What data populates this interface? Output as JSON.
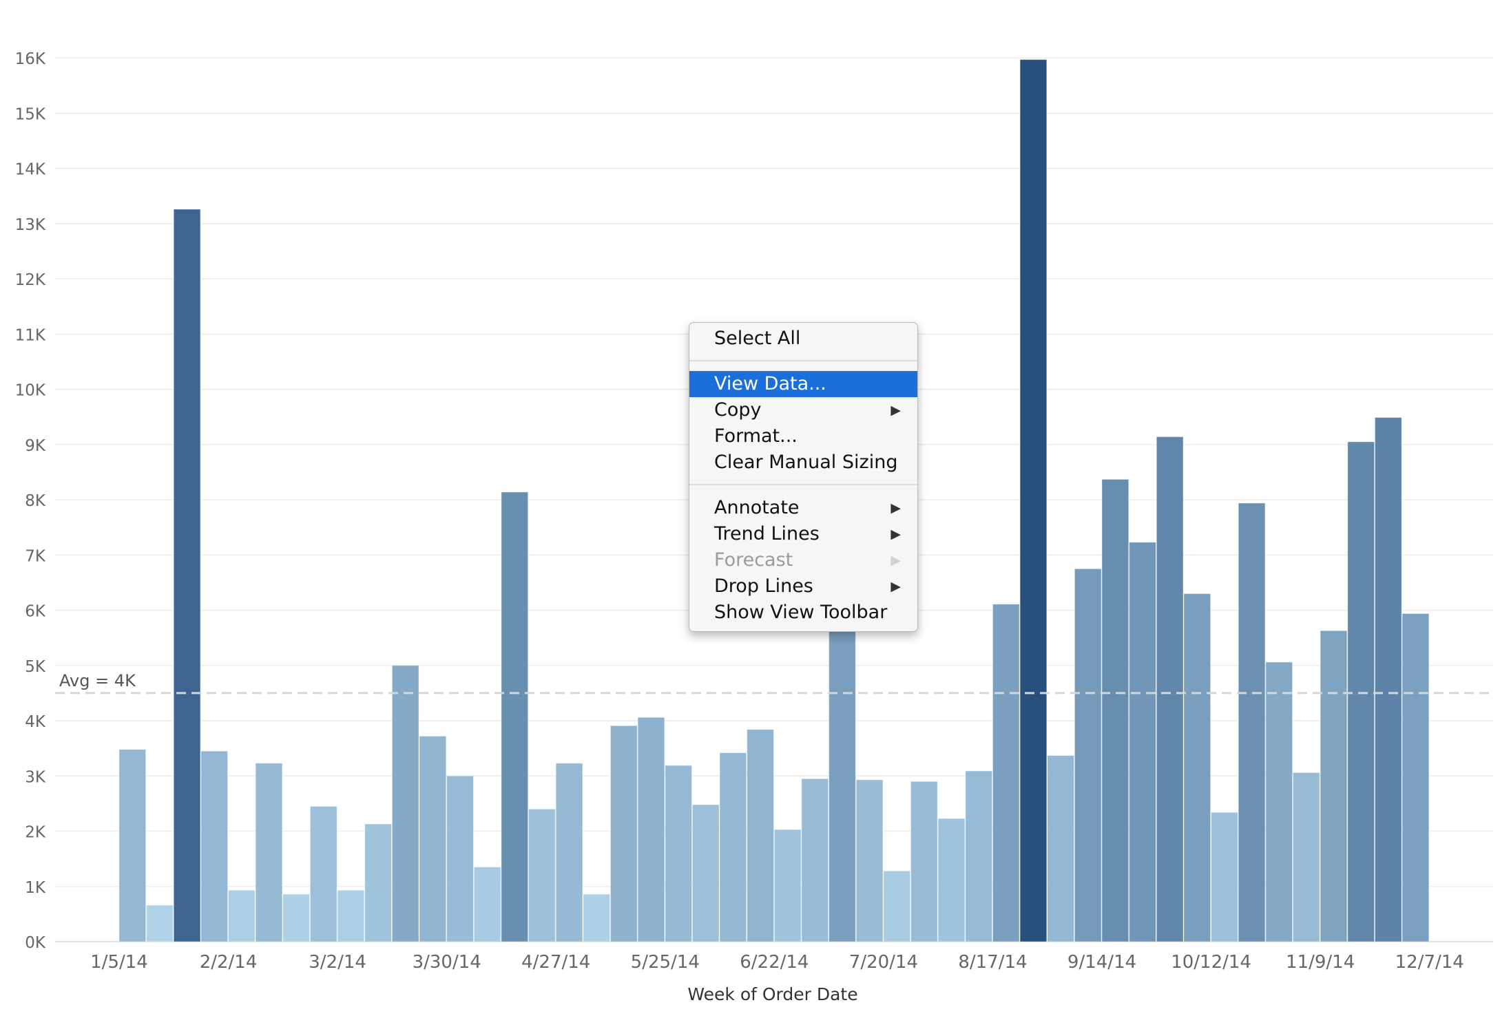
{
  "chart_data": {
    "type": "bar",
    "title": "",
    "xlabel": "Week of Order Date",
    "ylabel": "",
    "ylim": [
      0,
      16800
    ],
    "y_ticks": [
      0,
      1000,
      2000,
      3000,
      4000,
      5000,
      6000,
      7000,
      8000,
      9000,
      10000,
      11000,
      12000,
      13000,
      14000,
      15000,
      16000
    ],
    "y_tick_labels": [
      "0K",
      "1K",
      "2K",
      "3K",
      "4K",
      "5K",
      "6K",
      "7K",
      "8K",
      "9K",
      "10K",
      "11K",
      "12K",
      "13K",
      "14K",
      "15K",
      "16K"
    ],
    "x_tick_labels": [
      "1/5/14",
      "2/2/14",
      "3/2/14",
      "3/30/14",
      "4/27/14",
      "5/25/14",
      "6/22/14",
      "7/20/14",
      "8/17/14",
      "9/14/14",
      "10/12/14",
      "11/9/14",
      "12/7/14"
    ],
    "grid": true,
    "color_scale": [
      "#b8daef",
      "#27507d"
    ],
    "reference_line": {
      "label": "Avg = 4K",
      "value": 4500,
      "style": "dashed"
    },
    "bars": [
      {
        "week": "1/5/14",
        "value": 3480
      },
      {
        "week": "1/12/14",
        "value": 660
      },
      {
        "week": "1/19/14",
        "value": 13260
      },
      {
        "week": "1/26/14",
        "value": 3450
      },
      {
        "week": "2/2/14",
        "value": 930
      },
      {
        "week": "2/9/14",
        "value": 3230
      },
      {
        "week": "2/16/14",
        "value": 860
      },
      {
        "week": "2/23/14",
        "value": 2450
      },
      {
        "week": "3/2/14",
        "value": 930
      },
      {
        "week": "3/9/14",
        "value": 2130
      },
      {
        "week": "3/16/14",
        "value": 5000
      },
      {
        "week": "3/23/14",
        "value": 3720
      },
      {
        "week": "3/30/14",
        "value": 3000
      },
      {
        "week": "4/6/14",
        "value": 1350
      },
      {
        "week": "4/13/14",
        "value": 8140
      },
      {
        "week": "4/20/14",
        "value": 2400
      },
      {
        "week": "4/27/14",
        "value": 3230
      },
      {
        "week": "5/4/14",
        "value": 860
      },
      {
        "week": "5/11/14",
        "value": 3910
      },
      {
        "week": "5/18/14",
        "value": 4060
      },
      {
        "week": "5/25/14",
        "value": 3190
      },
      {
        "week": "6/1/14",
        "value": 2480
      },
      {
        "week": "6/8/14",
        "value": 3420
      },
      {
        "week": "6/15/14",
        "value": 3840
      },
      {
        "week": "6/22/14",
        "value": 2030
      },
      {
        "week": "6/29/14",
        "value": 2950
      },
      {
        "week": "7/6/14",
        "value": 6200
      },
      {
        "week": "7/13/14",
        "value": 2930
      },
      {
        "week": "7/20/14",
        "value": 1280
      },
      {
        "week": "7/27/14",
        "value": 2900
      },
      {
        "week": "8/3/14",
        "value": 2230
      },
      {
        "week": "8/10/14",
        "value": 3090
      },
      {
        "week": "8/17/14",
        "value": 6110
      },
      {
        "week": "8/24/14",
        "value": 15970
      },
      {
        "week": "8/31/14",
        "value": 3370
      },
      {
        "week": "9/7/14",
        "value": 6750
      },
      {
        "week": "9/14/14",
        "value": 8370
      },
      {
        "week": "9/21/14",
        "value": 7230
      },
      {
        "week": "9/28/14",
        "value": 9140
      },
      {
        "week": "10/5/14",
        "value": 6300
      },
      {
        "week": "10/12/14",
        "value": 2340
      },
      {
        "week": "10/19/14",
        "value": 7940
      },
      {
        "week": "10/26/14",
        "value": 5060
      },
      {
        "week": "11/2/14",
        "value": 3060
      },
      {
        "week": "11/9/14",
        "value": 5630
      },
      {
        "week": "11/16/14",
        "value": 9050
      },
      {
        "week": "11/23/14",
        "value": 9490
      },
      {
        "week": "11/30/14",
        "value": 5940
      }
    ]
  },
  "context_menu": {
    "items": [
      {
        "label": "Select All",
        "submenu": false,
        "disabled": false,
        "selected": false,
        "separator_after": true
      },
      {
        "label": "View Data...",
        "submenu": false,
        "disabled": false,
        "selected": true,
        "separator_after": false
      },
      {
        "label": "Copy",
        "submenu": true,
        "disabled": false,
        "selected": false,
        "separator_after": false
      },
      {
        "label": "Format...",
        "submenu": false,
        "disabled": false,
        "selected": false,
        "separator_after": false
      },
      {
        "label": "Clear Manual Sizing",
        "submenu": false,
        "disabled": false,
        "selected": false,
        "separator_after": true
      },
      {
        "label": "Annotate",
        "submenu": true,
        "disabled": false,
        "selected": false,
        "separator_after": false
      },
      {
        "label": "Trend Lines",
        "submenu": true,
        "disabled": false,
        "selected": false,
        "separator_after": false
      },
      {
        "label": "Forecast",
        "submenu": true,
        "disabled": true,
        "selected": false,
        "separator_after": false
      },
      {
        "label": "Drop Lines",
        "submenu": true,
        "disabled": false,
        "selected": false,
        "separator_after": false
      },
      {
        "label": "Show View Toolbar",
        "submenu": false,
        "disabled": false,
        "selected": false,
        "separator_after": false
      }
    ],
    "submenu_arrow": "▶"
  }
}
